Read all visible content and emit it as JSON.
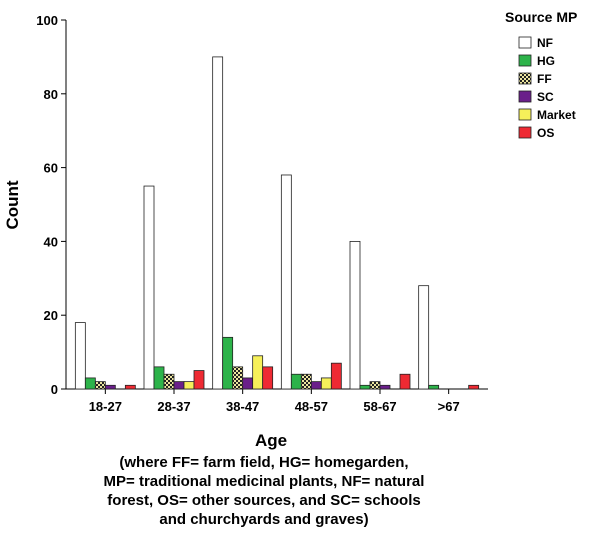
{
  "chart_data": {
    "type": "bar",
    "xlabel": "Age",
    "ylabel": "Count",
    "caption_lines": [
      "(where FF= farm field, HG= homegarden,",
      "MP= traditional medicinal plants, NF= natural",
      "forest, OS= other sources, and SC= schools",
      "and churchyards and graves)"
    ],
    "categories": [
      "18-27",
      "28-37",
      "38-47",
      "48-57",
      "58-67",
      ">67"
    ],
    "ylim": [
      0,
      100
    ],
    "yticks": [
      "0",
      "20",
      "40",
      "60",
      "80",
      "100"
    ],
    "legend": {
      "title": "Source MP",
      "position": "top-right"
    },
    "grid": false,
    "series": [
      {
        "name": "NF",
        "color": "#ffffff",
        "pattern": "none",
        "values": [
          18,
          55,
          90,
          58,
          40,
          28
        ]
      },
      {
        "name": "HG",
        "color": "#2db34a",
        "pattern": "none",
        "values": [
          3,
          6,
          14,
          4,
          1,
          1
        ]
      },
      {
        "name": "FF",
        "color": "#ece6a0",
        "pattern": "checker",
        "values": [
          2,
          4,
          6,
          4,
          2,
          0
        ]
      },
      {
        "name": "SC",
        "color": "#6a1f8a",
        "pattern": "none",
        "values": [
          1,
          2,
          3,
          2,
          1,
          0
        ]
      },
      {
        "name": "Market",
        "color": "#f6f05a",
        "pattern": "none",
        "values": [
          0,
          2,
          9,
          3,
          0,
          0
        ]
      },
      {
        "name": "OS",
        "color": "#ee2a33",
        "pattern": "none",
        "values": [
          1,
          5,
          6,
          7,
          4,
          1
        ]
      }
    ]
  }
}
